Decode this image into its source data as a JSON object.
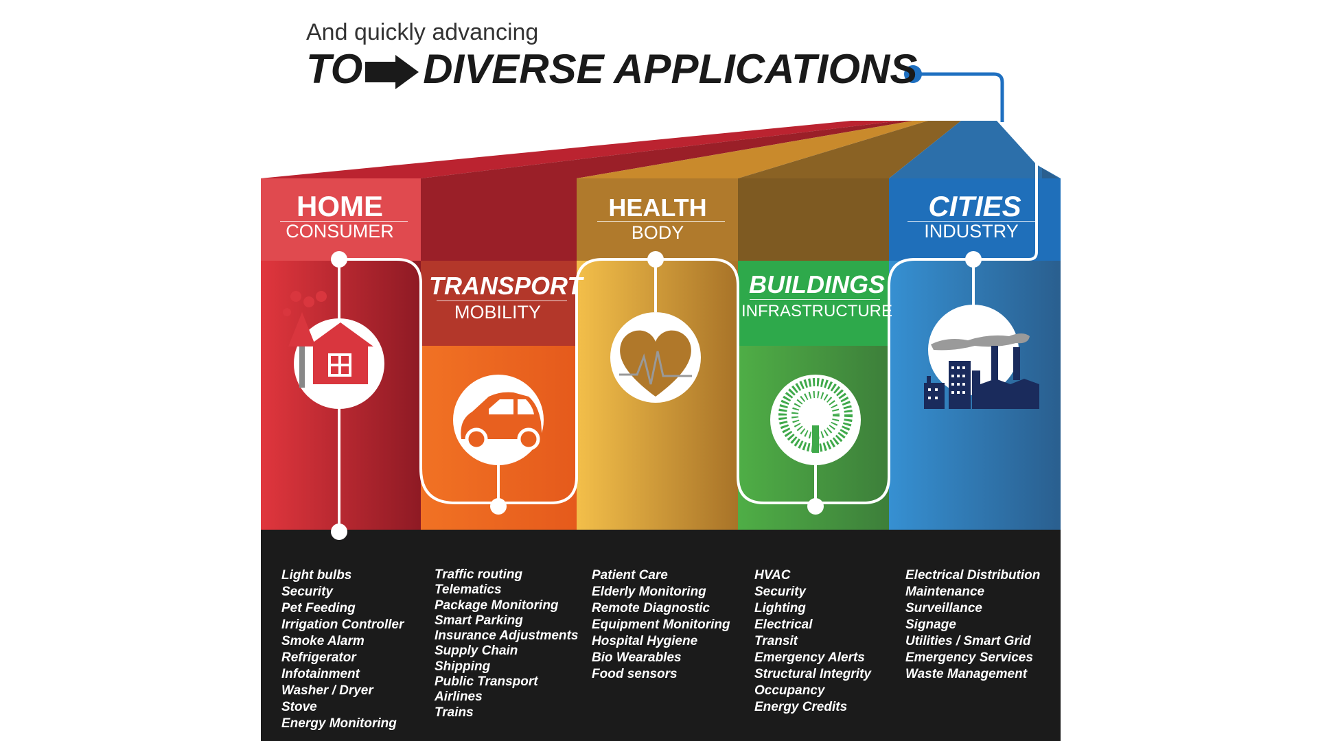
{
  "header": {
    "intro": "And quickly advancing",
    "headline_to": "TO",
    "headline_main": "DIVERSE APPLICATIONS"
  },
  "colors": {
    "home": "#d9363e",
    "transport": "#ee6a24",
    "health": "#e0a63a",
    "buildings": "#43a944",
    "cities": "#2d7fc1",
    "footer": "#1b1b1b",
    "connector": "#1e6fc0"
  },
  "categories": [
    {
      "key": "home",
      "title": "HOME",
      "subtitle": "CONSUMER",
      "icon": "house-with-trees-icon",
      "applications": [
        "Light bulbs",
        "Security",
        "Pet Feeding",
        "Irrigation Controller",
        "Smoke Alarm",
        "Refrigerator",
        "Infotainment",
        "Washer / Dryer",
        "Stove",
        "Energy Monitoring"
      ]
    },
    {
      "key": "transport",
      "title": "TRANSPORT",
      "subtitle": "MOBILITY",
      "icon": "car-icon",
      "applications": [
        "Traffic routing",
        "Telematics",
        "Package Monitoring",
        "Smart Parking",
        "Insurance Adjustments",
        "Supply Chain",
        "Shipping",
        "Public Transport",
        "Airlines",
        "Trains"
      ]
    },
    {
      "key": "health",
      "title": "HEALTH",
      "subtitle": "BODY",
      "icon": "heart-pulse-icon",
      "applications": [
        "Patient Care",
        "Elderly Monitoring",
        "Remote Diagnostic",
        "Equipment Monitoring",
        "Hospital Hygiene",
        "Bio Wearables",
        "Food sensors"
      ]
    },
    {
      "key": "buildings",
      "title": "BUILDINGS",
      "subtitle": "INFRASTRUCTURE",
      "icon": "tree-icon",
      "applications": [
        "HVAC",
        "Security",
        "Lighting",
        "Electrical",
        "Transit",
        "Emergency Alerts",
        "Structural Integrity",
        "Occupancy",
        "Energy Credits"
      ]
    },
    {
      "key": "cities",
      "title": "CITIES",
      "subtitle": "INDUSTRY",
      "icon": "factory-city-icon",
      "applications": [
        "Electrical Distribution",
        "Maintenance",
        "Surveillance",
        "Signage",
        "Utilities / Smart Grid",
        "Emergency Services",
        "Waste Management"
      ]
    }
  ]
}
